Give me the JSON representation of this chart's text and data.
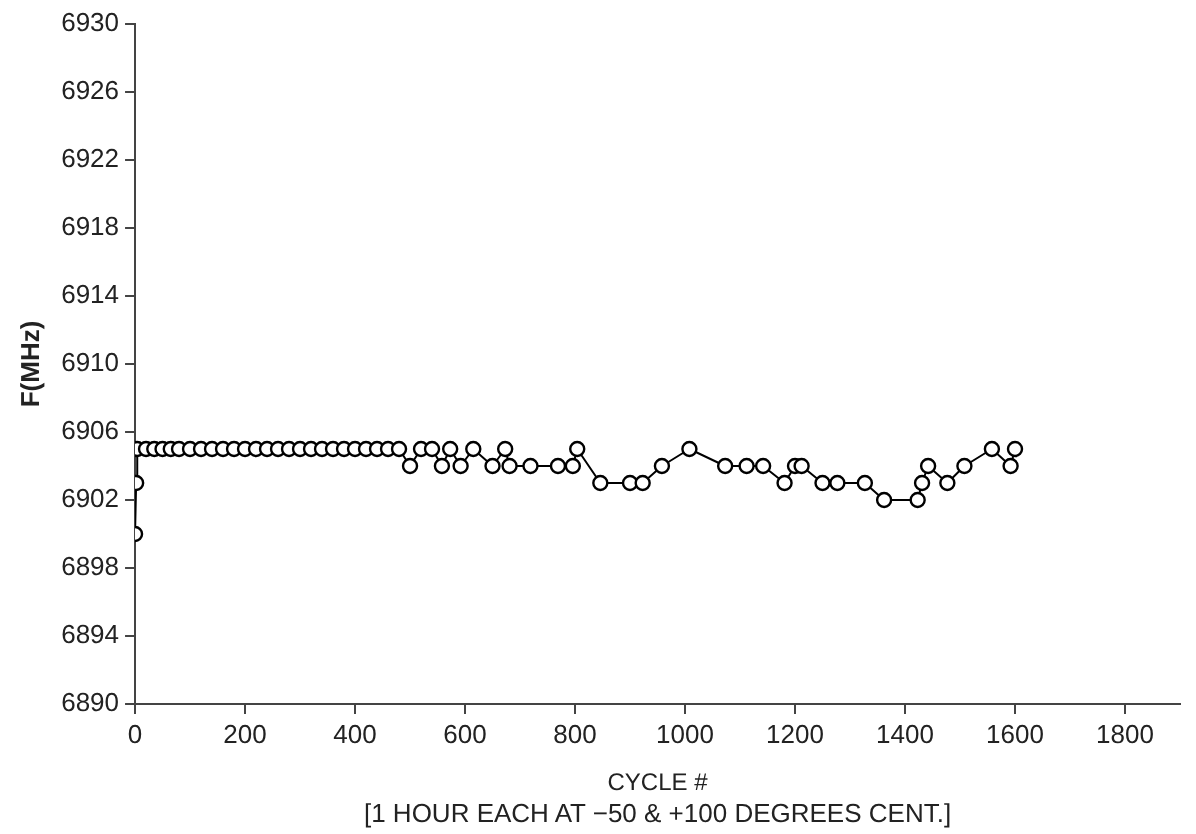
{
  "chart_data": {
    "type": "line",
    "xlabel": "CYCLE #",
    "ylabel": "F(MHz)",
    "annotations": [
      "[1 HOUR EACH AT −50 & +100 DEGREES CENT.]"
    ],
    "x": [
      0,
      2,
      4,
      20,
      35,
      50,
      65,
      80,
      100,
      120,
      140,
      160,
      180,
      200,
      220,
      240,
      260,
      280,
      300,
      320,
      340,
      360,
      380,
      400,
      420,
      440,
      460,
      480,
      500,
      520,
      540,
      558,
      573,
      592,
      615,
      650,
      673,
      681,
      719,
      769,
      796,
      804,
      846,
      900,
      923,
      958,
      1008,
      1073,
      1112,
      1142,
      1181,
      1200,
      1212,
      1250,
      1277,
      1327,
      1362,
      1423,
      1431,
      1442,
      1477,
      1508,
      1558,
      1592,
      1600
    ],
    "values": [
      6900,
      6903,
      6905,
      6905,
      6905,
      6905,
      6905,
      6905,
      6905,
      6905,
      6905,
      6905,
      6905,
      6905,
      6905,
      6905,
      6905,
      6905,
      6905,
      6905,
      6905,
      6905,
      6905,
      6905,
      6905,
      6905,
      6905,
      6905,
      6904,
      6905,
      6905,
      6904,
      6905,
      6904,
      6905,
      6904,
      6905,
      6904,
      6904,
      6904,
      6904,
      6905,
      6903,
      6903,
      6903,
      6904,
      6905,
      6904,
      6904,
      6904,
      6903,
      6904,
      6904,
      6903,
      6903,
      6903,
      6902,
      6902,
      6903,
      6904,
      6903,
      6904,
      6905,
      6904,
      6905
    ],
    "color": "#000000",
    "marker": "circle",
    "line_style": "solid",
    "grid": false,
    "legend": false,
    "xlim": [
      0,
      1900
    ],
    "xticks": [
      0,
      200,
      400,
      600,
      800,
      1000,
      1200,
      1400,
      1600,
      1800
    ],
    "ylim": [
      6890,
      6930
    ],
    "yticks": [
      6890,
      6894,
      6898,
      6902,
      6906,
      6910,
      6914,
      6918,
      6922,
      6926,
      6930
    ]
  }
}
